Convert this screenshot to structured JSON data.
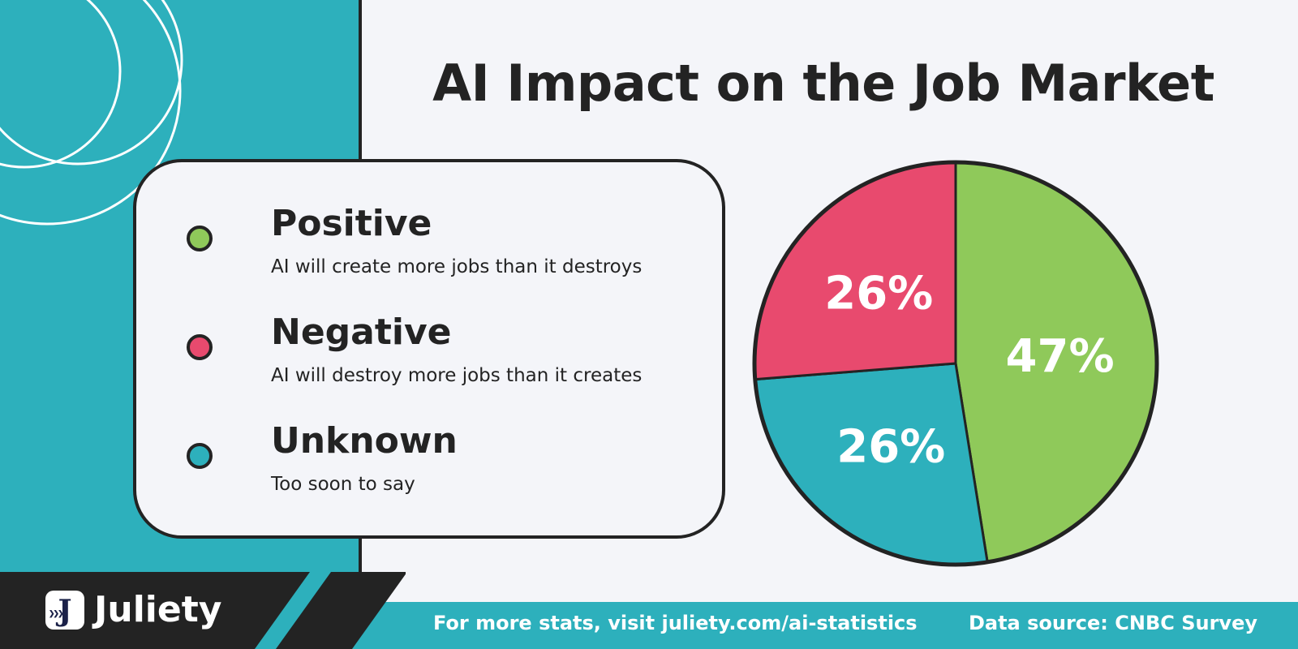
{
  "title": "AI Impact on the Job Market",
  "legend": [
    {
      "label": "Positive",
      "description": "AI will create more jobs than it destroys",
      "color": "#8fc95a"
    },
    {
      "label": "Negative",
      "description": "AI will destroy more jobs than it creates",
      "color": "#e84a6e"
    },
    {
      "label": "Unknown",
      "description": "Too soon to say",
      "color": "#2db0bc"
    }
  ],
  "chart_data": {
    "type": "pie",
    "title": "AI Impact on the Job Market",
    "slices": [
      {
        "label": "Positive",
        "value": 47,
        "display": "47%",
        "color": "#8fc95a"
      },
      {
        "label": "Unknown",
        "value": 26,
        "display": "26%",
        "color": "#2db0bc"
      },
      {
        "label": "Negative",
        "value": 26,
        "display": "26%",
        "color": "#e84a6e"
      }
    ],
    "start": "top",
    "direction": "clockwise"
  },
  "footer": {
    "brand": "Juliety",
    "logo_letter": "J",
    "link_text": "For more stats, visit juliety.com/ai-statistics",
    "source_text": "Data source: CNBC Survey"
  },
  "colors": {
    "teal": "#2db0bc",
    "dark": "#232323",
    "background": "#f4f5f9",
    "green": "#8fc95a",
    "pink": "#e84a6e"
  }
}
